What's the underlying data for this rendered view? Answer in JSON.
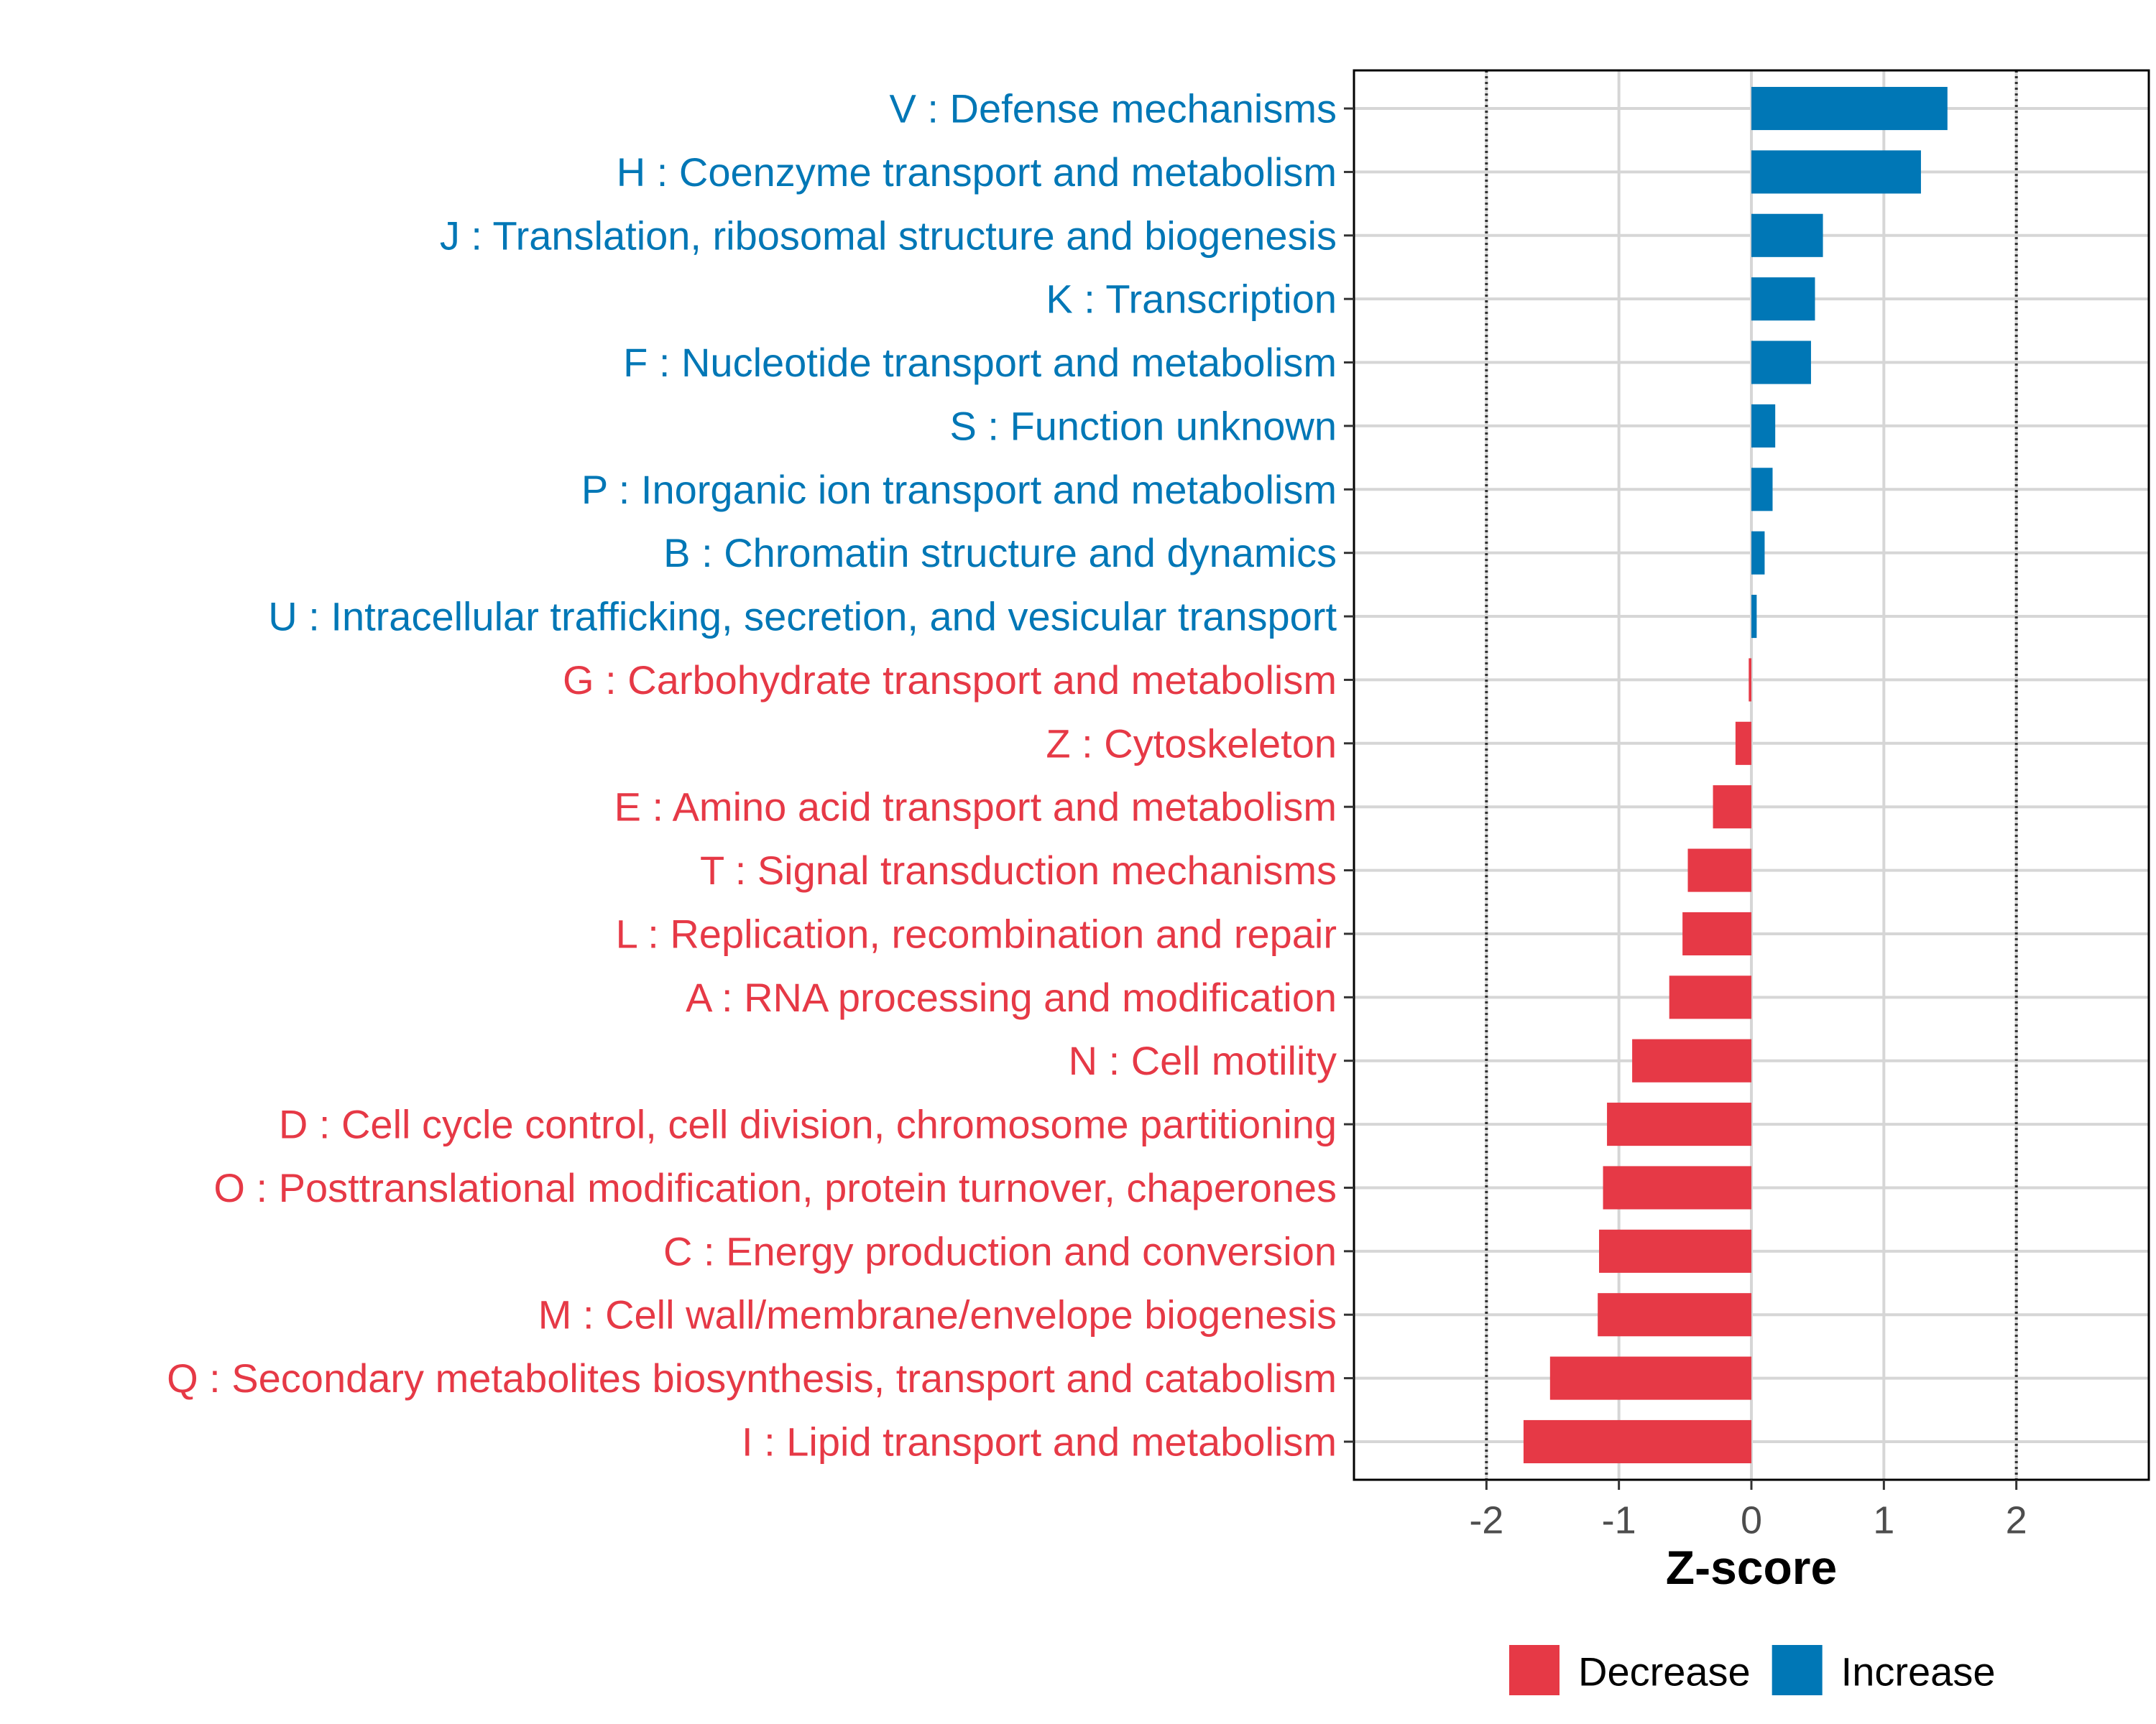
{
  "chart_data": {
    "type": "bar",
    "orientation": "horizontal",
    "xlabel": "Z-score",
    "ylabel": "",
    "xlim": [
      -3,
      3
    ],
    "xticks": [
      -2,
      -1,
      0,
      1,
      2
    ],
    "xtick_labels": [
      "-2",
      "-1",
      "0",
      "1",
      "2"
    ],
    "reference_lines": [
      -2,
      2
    ],
    "grid": true,
    "colors": {
      "Decrease": "#E63946",
      "Increase": "#0077B6"
    },
    "categories": [
      "V : Defense mechanisms",
      "H : Coenzyme transport and metabolism",
      "J : Translation, ribosomal structure and biogenesis",
      "K : Transcription",
      "F : Nucleotide transport and metabolism",
      "S : Function unknown",
      "P : Inorganic ion transport and metabolism",
      "B : Chromatin structure and dynamics",
      "U : Intracellular trafficking, secretion, and vesicular transport",
      "G : Carbohydrate transport and metabolism",
      "Z : Cytoskeleton",
      "E : Amino acid transport and metabolism",
      "T : Signal transduction mechanisms",
      "L : Replication, recombination and repair",
      "A : RNA processing and modification",
      "N : Cell motility",
      "D : Cell cycle control, cell division, chromosome partitioning",
      "O : Posttranslational modification, protein turnover, chaperones",
      "C : Energy production and conversion",
      "M : Cell wall/membrane/envelope biogenesis",
      "Q : Secondary metabolites biosynthesis, transport and catabolism",
      "I : Lipid transport and metabolism"
    ],
    "values": [
      1.48,
      1.28,
      0.54,
      0.48,
      0.45,
      0.18,
      0.16,
      0.1,
      0.04,
      -0.02,
      -0.12,
      -0.29,
      -0.48,
      -0.52,
      -0.62,
      -0.9,
      -1.09,
      -1.12,
      -1.15,
      -1.16,
      -1.52,
      -1.72
    ],
    "groups": [
      "Increase",
      "Increase",
      "Increase",
      "Increase",
      "Increase",
      "Increase",
      "Increase",
      "Increase",
      "Increase",
      "Decrease",
      "Decrease",
      "Decrease",
      "Decrease",
      "Decrease",
      "Decrease",
      "Decrease",
      "Decrease",
      "Decrease",
      "Decrease",
      "Decrease",
      "Decrease",
      "Decrease"
    ],
    "legend": {
      "position": "bottom",
      "entries": [
        {
          "label": "Decrease",
          "color": "#E63946"
        },
        {
          "label": "Increase",
          "color": "#0077B6"
        }
      ]
    }
  }
}
